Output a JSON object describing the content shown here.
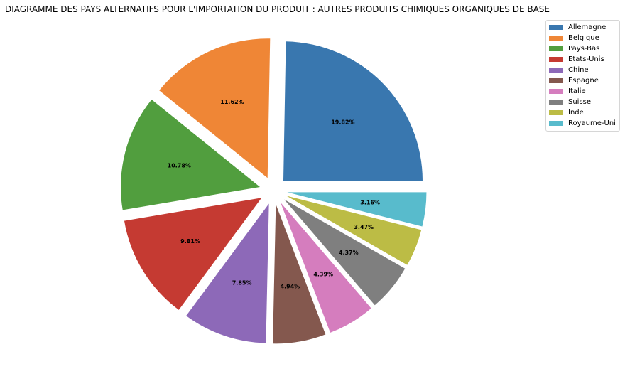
{
  "chart_data": {
    "type": "pie",
    "title": "DIAGRAMME DES PAYS ALTERNATIFS POUR L'IMPORTATION DU PRODUIT : AUTRES PRODUITS CHIMIQUES ORGANIQUES DE BASE",
    "categories": [
      "Allemagne",
      "Belgique",
      "Pays-Bas",
      "Etats-Unis",
      "Chine",
      "Espagne",
      "Italie",
      "Suisse",
      "Inde",
      "Royaume-Uni"
    ],
    "values": [
      19.82,
      11.62,
      10.78,
      9.81,
      7.85,
      4.94,
      4.39,
      4.37,
      3.47,
      3.16
    ],
    "value_labels": [
      "19.82%",
      "11.62%",
      "10.78%",
      "9.81%",
      "7.85%",
      "4.94%",
      "4.39%",
      "4.37%",
      "3.47%",
      "3.16%"
    ],
    "colors": [
      "#3977af",
      "#ef8636",
      "#519e3e",
      "#c53a32",
      "#8d69b8",
      "#84584e",
      "#d57dbe",
      "#7f7f7f",
      "#bcbc45",
      "#58bbcc"
    ],
    "legend_position": "top-right"
  }
}
